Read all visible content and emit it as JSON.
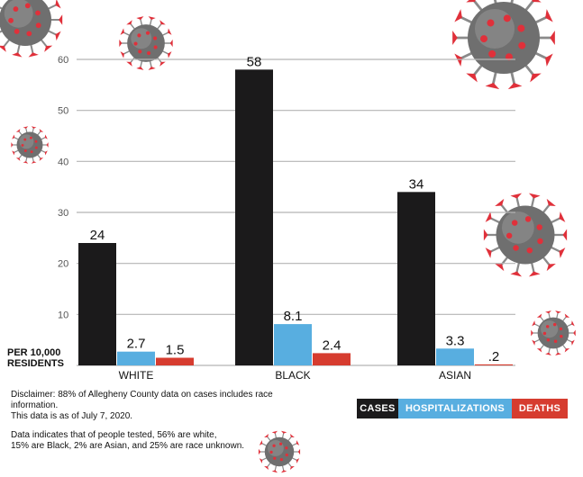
{
  "colors": {
    "cases": "#1b1a1b",
    "hospitalizations": "#58aee0",
    "deaths": "#d63c2f",
    "grid": "#b5b5b5",
    "virus_body": "#6f6f6f",
    "virus_spike": "#e0303a"
  },
  "chart_data": {
    "type": "bar",
    "categories": [
      "WHITE",
      "BLACK",
      "ASIAN"
    ],
    "series": [
      {
        "name": "CASES",
        "values": [
          24,
          58,
          34
        ],
        "labels": [
          "24",
          "58",
          "34"
        ]
      },
      {
        "name": "HOSPITALIZATIONS",
        "values": [
          2.7,
          8.1,
          3.3
        ],
        "labels": [
          "2.7",
          "8.1",
          "3.3"
        ]
      },
      {
        "name": "DEATHS",
        "values": [
          1.5,
          2.4,
          0.2
        ],
        "labels": [
          "1.5",
          "2.4",
          ".2"
        ]
      }
    ],
    "ylim": [
      0,
      60
    ],
    "yticks": [
      10,
      20,
      30,
      40,
      50,
      60
    ],
    "ylabel": "PER 10,000 RESIDENTS",
    "grid": true,
    "legend_position": "bottom-right"
  },
  "unit_label": {
    "line1": "PER 10,000",
    "line2": "RESIDENTS"
  },
  "disclaimer": {
    "line1": "Disclaimer: 88% of Allegheny County data on cases includes race information.",
    "line2": "This data is as of July 7, 2020.",
    "line3": "Data indicates that of people tested, 56% are white,",
    "line4": "15% are Black, 2% are Asian, and 25% are race unknown."
  },
  "legend": {
    "cases": "CASES",
    "hospitalizations": "HOSPITALIZATIONS",
    "deaths": "DEATHS"
  },
  "decorations": [
    "coronavirus-illustration"
  ]
}
